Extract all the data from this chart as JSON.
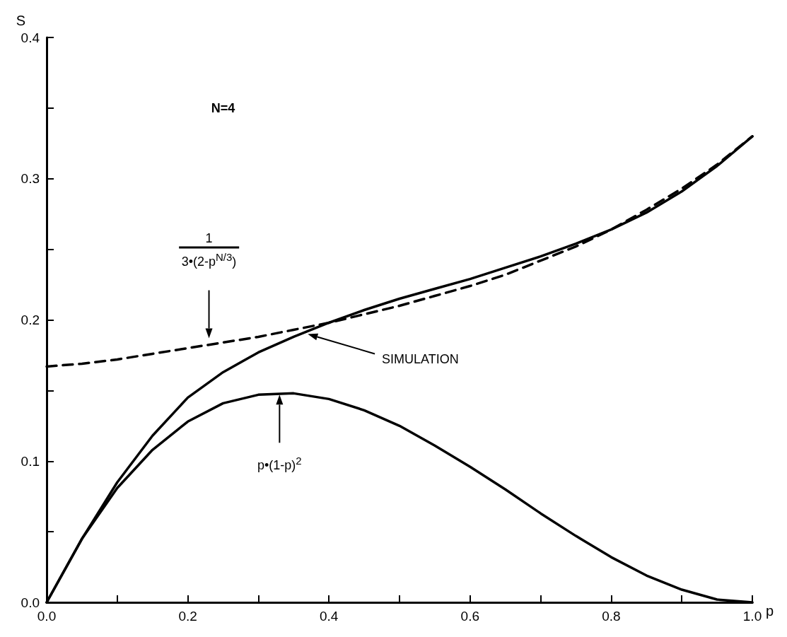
{
  "chart_data": {
    "type": "line",
    "xlabel": "p",
    "ylabel": "S",
    "xlim": [
      0,
      1
    ],
    "ylim": [
      0,
      0.4
    ],
    "xticks": [
      {
        "value": 0,
        "label": "0.0"
      },
      {
        "value": 0.1,
        "label": null
      },
      {
        "value": 0.2,
        "label": "0.2"
      },
      {
        "value": 0.3,
        "label": null
      },
      {
        "value": 0.4,
        "label": "0.4"
      },
      {
        "value": 0.5,
        "label": null
      },
      {
        "value": 0.6,
        "label": "0.6"
      },
      {
        "value": 0.7,
        "label": null
      },
      {
        "value": 0.8,
        "label": "0.8"
      },
      {
        "value": 0.9,
        "label": null
      },
      {
        "value": 1,
        "label": "1.0"
      }
    ],
    "yticks": [
      {
        "value": 0,
        "label": "0.0"
      },
      {
        "value": 0.05,
        "label": null
      },
      {
        "value": 0.1,
        "label": "0.1"
      },
      {
        "value": 0.15,
        "label": null
      },
      {
        "value": 0.2,
        "label": "0.2"
      },
      {
        "value": 0.25,
        "label": null
      },
      {
        "value": 0.3,
        "label": "0.3"
      },
      {
        "value": 0.35,
        "label": null
      },
      {
        "value": 0.4,
        "label": "0.4"
      }
    ],
    "grid": false,
    "x": [
      0,
      0.05,
      0.1,
      0.15,
      0.2,
      0.25,
      0.3,
      0.35,
      0.4,
      0.45,
      0.5,
      0.55,
      0.6,
      0.65,
      0.7,
      0.75,
      0.8,
      0.85,
      0.9,
      0.95,
      1
    ],
    "series": [
      {
        "color": "#000000",
        "line_style": "solid",
        "values": [
          0,
          0.045,
          0.085,
          0.118,
          0.145,
          0.163,
          0.177,
          0.188,
          0.198,
          0.207,
          0.215,
          0.222,
          0.229,
          0.237,
          0.245,
          0.254,
          0.264,
          0.276,
          0.291,
          0.309,
          0.33
        ]
      },
      {
        "color": "#000000",
        "line_style": "dashed",
        "values": [
          0.167,
          0.169,
          0.172,
          0.176,
          0.18,
          0.184,
          0.188,
          0.193,
          0.198,
          0.204,
          0.21,
          0.217,
          0.224,
          0.232,
          0.242,
          0.252,
          0.264,
          0.278,
          0.293,
          0.31,
          0.33
        ]
      },
      {
        "color": "#000000",
        "line_style": "solid",
        "values": [
          0,
          0.045,
          0.081,
          0.108,
          0.128,
          0.141,
          0.147,
          0.148,
          0.144,
          0.136,
          0.125,
          0.111,
          0.096,
          0.08,
          0.063,
          0.047,
          0.032,
          0.019,
          0.009,
          0.002,
          0
        ]
      }
    ],
    "annotations": [
      "N=4",
      "1\n3•(2-p$^{N/3}$)",
      "SIMULATION",
      "p•(1-p)$^{2}$"
    ]
  }
}
